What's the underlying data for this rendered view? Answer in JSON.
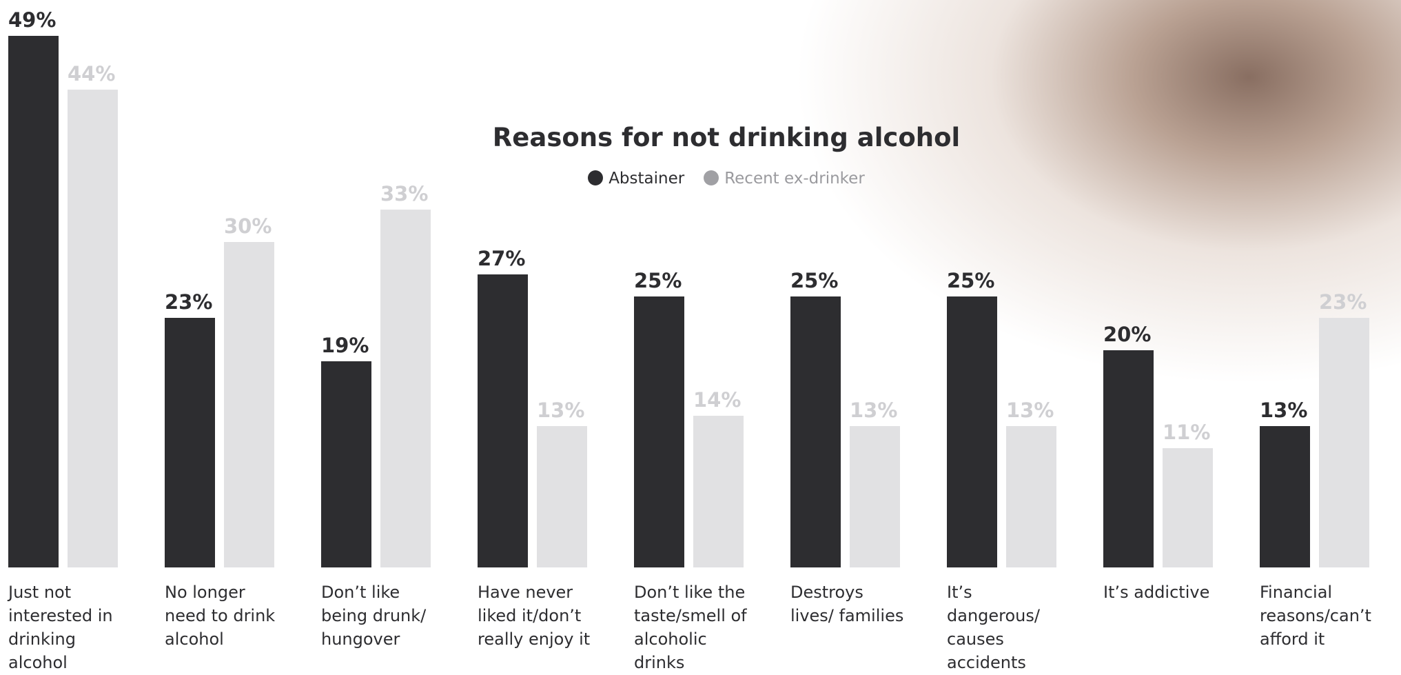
{
  "chart_data": {
    "type": "bar",
    "title": "Reasons for not drinking alcohol",
    "categories": [
      "Just not interested in drinking alcohol",
      "No longer need to drink alcohol",
      "Don’t like being drunk/ hungover",
      "Have never liked it/don’t really enjoy it",
      "Don’t like the taste/smell of alcoholic drinks",
      "Destroys lives/ families",
      "It’s dangerous/ causes accidents",
      "It’s addictive",
      "Financial reasons/can’t afford it"
    ],
    "series": [
      {
        "name": "Abstainer",
        "color": "#2d2d30",
        "values": [
          49,
          23,
          19,
          27,
          25,
          25,
          25,
          20,
          13
        ],
        "value_labels": [
          "49%",
          "23%",
          "19%",
          "27%",
          "25%",
          "25%",
          "25%",
          "20%",
          "13%"
        ]
      },
      {
        "name": "Recent ex-drinker",
        "color": "#e1e1e3",
        "values": [
          44,
          30,
          33,
          13,
          14,
          13,
          13,
          11,
          23
        ],
        "value_labels": [
          "44%",
          "30%",
          "33%",
          "13%",
          "14%",
          "13%",
          "13%",
          "11%",
          "23%"
        ]
      }
    ],
    "ylim": [
      0,
      50
    ]
  }
}
